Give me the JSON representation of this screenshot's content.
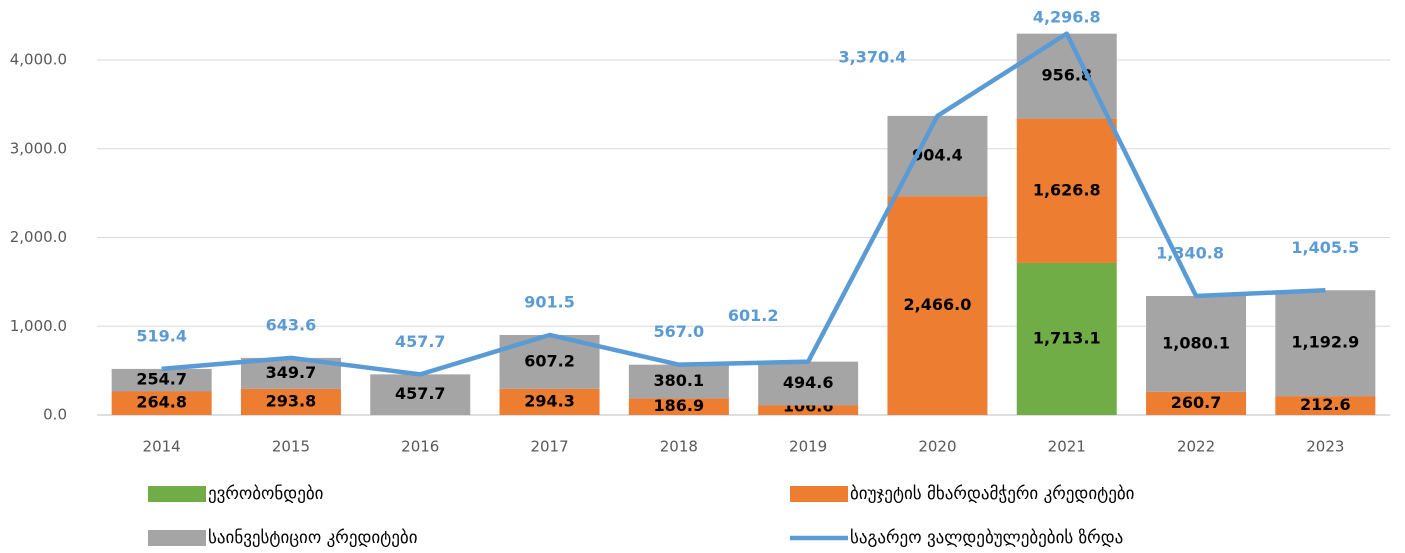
{
  "chart_data": {
    "type": "bar",
    "categories": [
      "2014",
      "2015",
      "2016",
      "2017",
      "2018",
      "2019",
      "2020",
      "2021",
      "2022",
      "2023"
    ],
    "series": [
      {
        "name": "ევრობონდები",
        "color": "#70ad47",
        "values": [
          null,
          null,
          null,
          null,
          null,
          null,
          null,
          1713.1,
          null,
          null
        ],
        "value_labels": [
          null,
          null,
          null,
          null,
          null,
          null,
          null,
          "1,713.1",
          null,
          null
        ]
      },
      {
        "name": "ბიუჯეტის მხარდამჭერი კრედიტები",
        "color": "#ed7d31",
        "values": [
          264.8,
          293.8,
          null,
          294.3,
          186.9,
          106.6,
          2466.0,
          1626.8,
          260.7,
          212.6
        ],
        "value_labels": [
          "264.8",
          "293.8",
          null,
          "294.3",
          "186.9",
          "106.6",
          "2,466.0",
          "1,626.8",
          "260.7",
          "212.6"
        ]
      },
      {
        "name": "საინვესტიციო  კრედიტები",
        "color": "#a5a5a5",
        "values": [
          254.7,
          349.7,
          457.7,
          607.2,
          380.1,
          494.6,
          904.4,
          956.8,
          1080.1,
          1192.9
        ],
        "value_labels": [
          "254.7",
          "349.7",
          "457.7",
          "607.2",
          "380.1",
          "494.6",
          "904.4",
          "956.8",
          "1,080.1",
          "1,192.9"
        ]
      },
      {
        "name": "საგარეო ვალდებულებების ზრდა",
        "color": "#5b9bd5",
        "type": "line",
        "values": [
          519.4,
          643.6,
          457.7,
          901.5,
          567.0,
          601.2,
          3370.4,
          4296.8,
          1340.8,
          1405.5
        ],
        "value_labels": [
          "519.4",
          "643.6",
          "457.7",
          "901.5",
          "567.0",
          "601.2",
          "3,370.4",
          "4,296.8",
          "1,340.8",
          "1,405.5"
        ]
      }
    ],
    "ylim": [
      0,
      4500
    ],
    "yticks": [
      {
        "value": 0,
        "label": "0.0"
      },
      {
        "value": 1000,
        "label": "1,000.0"
      },
      {
        "value": 2000,
        "label": "2,000.0"
      },
      {
        "value": 3000,
        "label": "3,000.0"
      },
      {
        "value": 4000,
        "label": "4,000.0"
      }
    ],
    "grid": true,
    "stacked": true,
    "legend": "bottom"
  }
}
